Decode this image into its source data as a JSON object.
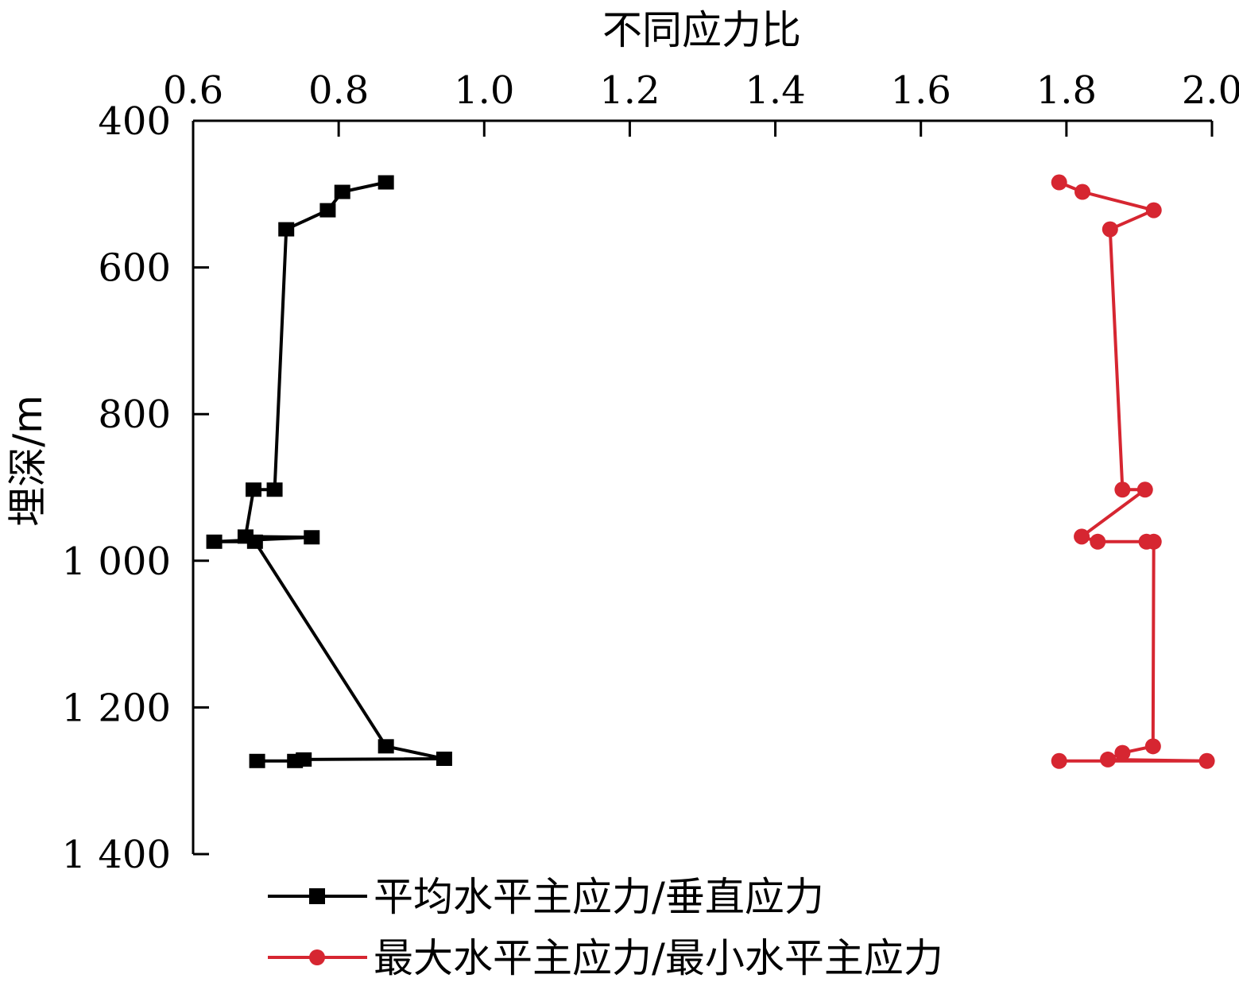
{
  "chart_data": {
    "type": "line",
    "x_axis_title": "不同应力比",
    "y_axis_title": "埋深/m",
    "x_ticks": [
      0.6,
      0.8,
      1.0,
      1.2,
      1.4,
      1.6,
      1.8,
      2.0
    ],
    "x_tick_labels": [
      "0.6",
      "0.8",
      "1.0",
      "1.2",
      "1.4",
      "1.6",
      "1.8",
      "2.0"
    ],
    "xlim": [
      0.6,
      2.0
    ],
    "y_ticks": [
      400,
      600,
      800,
      1000,
      1200,
      1400
    ],
    "y_tick_labels": [
      "400",
      "600",
      "800",
      "1 000",
      "1 200",
      "1 400"
    ],
    "ylim": [
      400,
      1400
    ],
    "y_inverted": true,
    "x_axis_position": "top",
    "grid": false,
    "legend_position": "bottom",
    "series": [
      {
        "name": "平均水平主应力/垂直应力",
        "color": "#000000",
        "marker": "square",
        "points": [
          {
            "x": 0.865,
            "y": 484
          },
          {
            "x": 0.805,
            "y": 497
          },
          {
            "x": 0.785,
            "y": 522
          },
          {
            "x": 0.728,
            "y": 548
          },
          {
            "x": 0.712,
            "y": 903
          },
          {
            "x": 0.683,
            "y": 903
          },
          {
            "x": 0.672,
            "y": 967
          },
          {
            "x": 0.763,
            "y": 968
          },
          {
            "x": 0.629,
            "y": 974
          },
          {
            "x": 0.685,
            "y": 974
          },
          {
            "x": 0.865,
            "y": 1253
          },
          {
            "x": 0.945,
            "y": 1270
          },
          {
            "x": 0.752,
            "y": 1271
          },
          {
            "x": 0.74,
            "y": 1273
          },
          {
            "x": 0.688,
            "y": 1273
          }
        ]
      },
      {
        "name": "最大水平主应力/最小水平主应力",
        "color": "#d62631",
        "marker": "circle",
        "points": [
          {
            "x": 1.79,
            "y": 484
          },
          {
            "x": 1.822,
            "y": 497
          },
          {
            "x": 1.92,
            "y": 522
          },
          {
            "x": 1.86,
            "y": 548
          },
          {
            "x": 1.877,
            "y": 903
          },
          {
            "x": 1.908,
            "y": 903
          },
          {
            "x": 1.821,
            "y": 967
          },
          {
            "x": 1.843,
            "y": 974
          },
          {
            "x": 1.91,
            "y": 974
          },
          {
            "x": 1.92,
            "y": 974
          },
          {
            "x": 1.919,
            "y": 1253
          },
          {
            "x": 1.877,
            "y": 1262
          },
          {
            "x": 1.857,
            "y": 1271
          },
          {
            "x": 1.993,
            "y": 1273
          },
          {
            "x": 1.79,
            "y": 1273
          }
        ]
      }
    ]
  }
}
